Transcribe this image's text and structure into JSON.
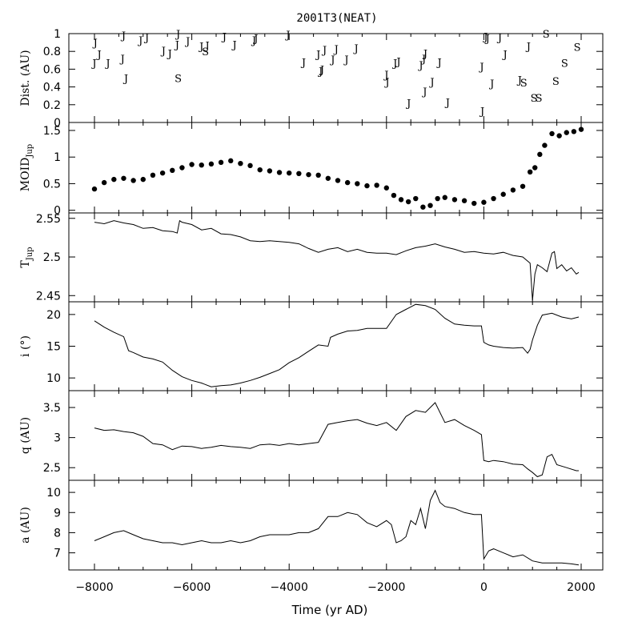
{
  "chart_data": {
    "type": "line",
    "title": "2001T3(NEAT)",
    "xlabel": "Time (yr AD)",
    "xlim": [
      -8000,
      2000
    ],
    "xticks": [
      -8000,
      -6000,
      -4000,
      -2000,
      0,
      2000
    ],
    "panels": [
      {
        "key": "dist",
        "ylabel": "Dist. (AU)",
        "plot": "encounters",
        "ylim": [
          0,
          1
        ],
        "yticks": [
          0,
          0.2,
          0.4,
          0.6,
          0.8,
          1
        ],
        "ytick_labels": [
          "0",
          "0.2",
          "0.4",
          "0.6",
          "0.8",
          "1"
        ],
        "points": [
          {
            "t": -7980,
            "d": 0.9,
            "label": "J"
          },
          {
            "t": -8000,
            "d": 0.67,
            "label": "J"
          },
          {
            "t": -7900,
            "d": 0.77,
            "label": "J"
          },
          {
            "t": -7720,
            "d": 0.67,
            "label": "J"
          },
          {
            "t": -7420,
            "d": 0.72,
            "label": "J"
          },
          {
            "t": -7400,
            "d": 0.98,
            "label": "J"
          },
          {
            "t": -7350,
            "d": 0.5,
            "label": "J"
          },
          {
            "t": -7050,
            "d": 0.93,
            "label": "J"
          },
          {
            "t": -6920,
            "d": 0.96,
            "label": "J"
          },
          {
            "t": -6580,
            "d": 0.81,
            "label": "J"
          },
          {
            "t": -6450,
            "d": 0.78,
            "label": "J"
          },
          {
            "t": -6300,
            "d": 0.88,
            "label": "J"
          },
          {
            "t": -6280,
            "d": 1.0,
            "label": "J"
          },
          {
            "t": -6280,
            "d": 0.5,
            "label": "S"
          },
          {
            "t": -6080,
            "d": 0.92,
            "label": "J"
          },
          {
            "t": -5800,
            "d": 0.86,
            "label": "J"
          },
          {
            "t": -5720,
            "d": 0.8,
            "label": "S"
          },
          {
            "t": -5680,
            "d": 0.87,
            "label": "J"
          },
          {
            "t": -5330,
            "d": 0.97,
            "label": "J"
          },
          {
            "t": -5120,
            "d": 0.88,
            "label": "J"
          },
          {
            "t": -4720,
            "d": 0.93,
            "label": "J"
          },
          {
            "t": -4680,
            "d": 0.95,
            "label": "J"
          },
          {
            "t": -4020,
            "d": 0.99,
            "label": "J"
          },
          {
            "t": -3700,
            "d": 0.68,
            "label": "J"
          },
          {
            "t": -3400,
            "d": 0.77,
            "label": "J"
          },
          {
            "t": -3350,
            "d": 0.58,
            "label": "J"
          },
          {
            "t": -3320,
            "d": 0.6,
            "label": "J"
          },
          {
            "t": -3270,
            "d": 0.82,
            "label": "J"
          },
          {
            "t": -3100,
            "d": 0.71,
            "label": "J"
          },
          {
            "t": -3030,
            "d": 0.83,
            "label": "J"
          },
          {
            "t": -2820,
            "d": 0.71,
            "label": "J"
          },
          {
            "t": -2620,
            "d": 0.84,
            "label": "J"
          },
          {
            "t": -2000,
            "d": 0.54,
            "label": "J"
          },
          {
            "t": -1980,
            "d": 0.46,
            "label": "J"
          },
          {
            "t": -1820,
            "d": 0.67,
            "label": "J"
          },
          {
            "t": -1750,
            "d": 0.69,
            "label": "J"
          },
          {
            "t": -1540,
            "d": 0.22,
            "label": "J"
          },
          {
            "t": -1290,
            "d": 0.65,
            "label": "J"
          },
          {
            "t": -1230,
            "d": 0.72,
            "label": "J"
          },
          {
            "t": -1200,
            "d": 0.78,
            "label": "J"
          },
          {
            "t": -1210,
            "d": 0.35,
            "label": "J"
          },
          {
            "t": -1060,
            "d": 0.46,
            "label": "J"
          },
          {
            "t": -910,
            "d": 0.68,
            "label": "J"
          },
          {
            "t": -740,
            "d": 0.23,
            "label": "J"
          },
          {
            "t": -30,
            "d": 0.13,
            "label": "J"
          },
          {
            "t": -40,
            "d": 0.63,
            "label": "J"
          },
          {
            "t": 40,
            "d": 0.97,
            "label": "J"
          },
          {
            "t": 80,
            "d": 0.95,
            "label": "J"
          },
          {
            "t": 170,
            "d": 0.44,
            "label": "J"
          },
          {
            "t": 330,
            "d": 0.96,
            "label": "J"
          },
          {
            "t": 440,
            "d": 0.77,
            "label": "J"
          },
          {
            "t": 740,
            "d": 0.48,
            "label": "J"
          },
          {
            "t": 820,
            "d": 0.45,
            "label": "S"
          },
          {
            "t": 920,
            "d": 0.86,
            "label": "J"
          },
          {
            "t": 1030,
            "d": 0.28,
            "label": "S"
          },
          {
            "t": 1130,
            "d": 0.28,
            "label": "S"
          },
          {
            "t": 1280,
            "d": 1.0,
            "label": "S"
          },
          {
            "t": 1480,
            "d": 0.47,
            "label": "S"
          },
          {
            "t": 1660,
            "d": 0.67,
            "label": "S"
          },
          {
            "t": 1920,
            "d": 0.85,
            "label": "S"
          }
        ]
      },
      {
        "key": "moid",
        "ylabel": "MOID",
        "ylabel_sub": "Jup",
        "plot": "dots",
        "ylim": [
          -0.05,
          1.65
        ],
        "yticks": [
          0,
          0.5,
          1,
          1.5
        ],
        "ytick_labels": [
          "0",
          "0.5",
          "1",
          "1.5"
        ],
        "x": [
          -8000,
          -7800,
          -7600,
          -7400,
          -7200,
          -7000,
          -6800,
          -6600,
          -6400,
          -6200,
          -6000,
          -5800,
          -5600,
          -5400,
          -5200,
          -5000,
          -4800,
          -4600,
          -4400,
          -4200,
          -4000,
          -3800,
          -3600,
          -3400,
          -3200,
          -3000,
          -2800,
          -2600,
          -2400,
          -2200,
          -2000,
          -1850,
          -1700,
          -1550,
          -1400,
          -1250,
          -1100,
          -950,
          -800,
          -600,
          -400,
          -200,
          0,
          200,
          400,
          600,
          800,
          950,
          1050,
          1150,
          1250,
          1400,
          1550,
          1700,
          1850,
          2000
        ],
        "y": [
          0.4,
          0.52,
          0.58,
          0.6,
          0.56,
          0.58,
          0.66,
          0.7,
          0.75,
          0.8,
          0.86,
          0.85,
          0.87,
          0.9,
          0.93,
          0.88,
          0.84,
          0.76,
          0.74,
          0.71,
          0.7,
          0.69,
          0.67,
          0.66,
          0.6,
          0.56,
          0.52,
          0.5,
          0.46,
          0.47,
          0.42,
          0.28,
          0.2,
          0.16,
          0.22,
          0.06,
          0.09,
          0.22,
          0.24,
          0.2,
          0.18,
          0.13,
          0.15,
          0.22,
          0.3,
          0.38,
          0.45,
          0.72,
          0.8,
          1.05,
          1.22,
          1.44,
          1.4,
          1.46,
          1.48,
          1.52
        ]
      },
      {
        "key": "tjup",
        "ylabel": "T",
        "ylabel_sub": "Jup",
        "plot": "line",
        "ylim": [
          2.442,
          2.557
        ],
        "yticks": [
          2.45,
          2.5,
          2.55
        ],
        "ytick_labels": [
          "2.45",
          "2.5",
          "2.55"
        ],
        "x": [
          -8000,
          -7800,
          -7600,
          -7400,
          -7200,
          -7000,
          -6800,
          -6600,
          -6400,
          -6300,
          -6250,
          -6200,
          -6000,
          -5800,
          -5600,
          -5400,
          -5200,
          -5000,
          -4800,
          -4600,
          -4400,
          -4200,
          -4000,
          -3800,
          -3600,
          -3400,
          -3200,
          -3000,
          -2800,
          -2600,
          -2400,
          -2200,
          -2000,
          -1800,
          -1600,
          -1400,
          -1200,
          -1000,
          -800,
          -600,
          -400,
          -200,
          0,
          200,
          400,
          600,
          800,
          950,
          1000,
          1050,
          1100,
          1200,
          1300,
          1400,
          1450,
          1500,
          1600,
          1700,
          1800,
          1900,
          1950
        ],
        "y": [
          2.545,
          2.543,
          2.547,
          2.544,
          2.542,
          2.537,
          2.538,
          2.534,
          2.533,
          2.531,
          2.547,
          2.545,
          2.542,
          2.535,
          2.537,
          2.53,
          2.529,
          2.526,
          2.521,
          2.52,
          2.521,
          2.52,
          2.519,
          2.517,
          2.511,
          2.506,
          2.51,
          2.512,
          2.507,
          2.51,
          2.506,
          2.505,
          2.505,
          2.503,
          2.508,
          2.512,
          2.514,
          2.517,
          2.513,
          2.51,
          2.506,
          2.507,
          2.505,
          2.504,
          2.506,
          2.502,
          2.5,
          2.492,
          2.444,
          2.478,
          2.49,
          2.486,
          2.481,
          2.505,
          2.507,
          2.485,
          2.49,
          2.482,
          2.486,
          2.478,
          2.48
        ]
      },
      {
        "key": "inc",
        "ylabel": "i (°)",
        "plot": "line",
        "ylim": [
          8,
          22
        ],
        "yticks": [
          10,
          15,
          20
        ],
        "ytick_labels": [
          "10",
          "15",
          "20"
        ],
        "x": [
          -8000,
          -7800,
          -7600,
          -7400,
          -7300,
          -7200,
          -7000,
          -6800,
          -6600,
          -6400,
          -6200,
          -6000,
          -5800,
          -5600,
          -5400,
          -5200,
          -5000,
          -4800,
          -4600,
          -4400,
          -4200,
          -4000,
          -3800,
          -3600,
          -3400,
          -3200,
          -3150,
          -3000,
          -2800,
          -2600,
          -2400,
          -2200,
          -2000,
          -1800,
          -1600,
          -1400,
          -1200,
          -1000,
          -800,
          -600,
          -400,
          -200,
          -50,
          0,
          100,
          200,
          400,
          600,
          800,
          900,
          950,
          1000,
          1100,
          1200,
          1400,
          1600,
          1800,
          1950
        ],
        "y": [
          19,
          18,
          17.2,
          16.5,
          14.3,
          14,
          13.3,
          13,
          12.5,
          11.2,
          10.2,
          9.6,
          9.2,
          8.6,
          8.8,
          8.9,
          9.2,
          9.6,
          10.1,
          10.7,
          11.3,
          12.4,
          13.2,
          14.2,
          15.2,
          15,
          16.4,
          16.9,
          17.4,
          17.5,
          17.8,
          17.8,
          17.8,
          20,
          20.8,
          21.6,
          21.4,
          20.8,
          19.4,
          18.5,
          18.3,
          18.2,
          18.2,
          15.6,
          15.2,
          15,
          14.8,
          14.7,
          14.8,
          13.9,
          14.5,
          16,
          18.3,
          19.9,
          20.2,
          19.6,
          19.3,
          19.6
        ]
      },
      {
        "key": "q",
        "ylabel": "q (AU)",
        "plot": "line",
        "ylim": [
          2.29,
          3.78
        ],
        "yticks": [
          2.5,
          3,
          3.5
        ],
        "ytick_labels": [
          "2.5",
          "3",
          "3.5"
        ],
        "x": [
          -8000,
          -7800,
          -7600,
          -7400,
          -7200,
          -7000,
          -6800,
          -6600,
          -6400,
          -6200,
          -6000,
          -5800,
          -5600,
          -5400,
          -5200,
          -5000,
          -4800,
          -4600,
          -4400,
          -4200,
          -4000,
          -3800,
          -3600,
          -3400,
          -3200,
          -3000,
          -2800,
          -2600,
          -2400,
          -2200,
          -2000,
          -1800,
          -1600,
          -1400,
          -1200,
          -1000,
          -800,
          -600,
          -400,
          -200,
          -50,
          0,
          100,
          200,
          400,
          600,
          800,
          900,
          1000,
          1100,
          1200,
          1300,
          1400,
          1500,
          1700,
          1900,
          1950
        ],
        "y": [
          3.16,
          3.12,
          3.13,
          3.1,
          3.08,
          3.02,
          2.9,
          2.88,
          2.8,
          2.86,
          2.85,
          2.82,
          2.84,
          2.87,
          2.85,
          2.84,
          2.82,
          2.88,
          2.89,
          2.87,
          2.9,
          2.88,
          2.9,
          2.92,
          3.22,
          3.25,
          3.28,
          3.3,
          3.24,
          3.2,
          3.25,
          3.12,
          3.35,
          3.45,
          3.42,
          3.58,
          3.25,
          3.3,
          3.2,
          3.12,
          3.05,
          2.62,
          2.6,
          2.62,
          2.6,
          2.56,
          2.55,
          2.48,
          2.42,
          2.35,
          2.38,
          2.68,
          2.72,
          2.55,
          2.5,
          2.45,
          2.45
        ]
      },
      {
        "key": "a",
        "ylabel": "a (AU)",
        "plot": "line",
        "ylim": [
          6.15,
          10.6
        ],
        "yticks": [
          7,
          8,
          9,
          10
        ],
        "ytick_labels": [
          "7",
          "8",
          "9",
          "10"
        ],
        "x": [
          -8000,
          -7800,
          -7600,
          -7400,
          -7200,
          -7000,
          -6800,
          -6600,
          -6400,
          -6200,
          -6000,
          -5800,
          -5600,
          -5400,
          -5200,
          -5000,
          -4800,
          -4600,
          -4400,
          -4200,
          -4000,
          -3800,
          -3600,
          -3400,
          -3200,
          -3000,
          -2800,
          -2600,
          -2400,
          -2200,
          -2000,
          -1900,
          -1800,
          -1700,
          -1600,
          -1500,
          -1400,
          -1300,
          -1200,
          -1100,
          -1000,
          -900,
          -800,
          -600,
          -400,
          -200,
          -50,
          0,
          100,
          200,
          400,
          600,
          800,
          1000,
          1200,
          1400,
          1600,
          1800,
          1950
        ],
        "y": [
          7.6,
          7.8,
          8.0,
          8.1,
          7.9,
          7.7,
          7.6,
          7.5,
          7.5,
          7.4,
          7.5,
          7.6,
          7.5,
          7.5,
          7.6,
          7.5,
          7.6,
          7.8,
          7.9,
          7.9,
          7.9,
          8.0,
          8.0,
          8.2,
          8.8,
          8.8,
          9.0,
          8.9,
          8.5,
          8.3,
          8.6,
          8.4,
          7.5,
          7.6,
          7.8,
          8.6,
          8.4,
          9.2,
          8.2,
          9.6,
          10.1,
          9.5,
          9.3,
          9.2,
          9.0,
          8.9,
          8.9,
          6.7,
          7.1,
          7.2,
          7.0,
          6.8,
          6.9,
          6.6,
          6.5,
          6.5,
          6.5,
          6.45,
          6.4
        ]
      }
    ]
  }
}
